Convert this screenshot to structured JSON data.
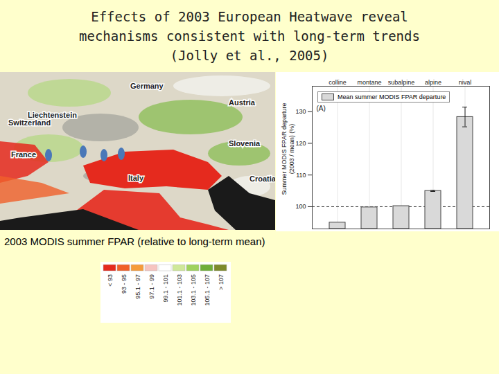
{
  "chart_data": {
    "type": "bar",
    "title": "Effects of 2003 European Heatwave reveal\nmechanisms consistent with long-term trends\n(Jolly et al., 2005)",
    "categories": [
      "colline",
      "montane",
      "subalpine",
      "alpine",
      "nival"
    ],
    "series": [
      {
        "name": "Mean summer MODIS FPAR departure",
        "color": "#d9d9d9",
        "values": [
          95,
          99.8,
          100.2,
          105,
          128.3
        ],
        "errors": [
          0,
          0,
          0,
          0.2,
          3.1
        ]
      }
    ],
    "y_label": "Summer MODIS FPAR departure\n(2003 / mean) (%)",
    "ylim": [
      93,
      138
    ],
    "yticks": [
      100,
      110,
      120,
      130
    ],
    "baseline": 100,
    "annotations": [
      "(A)"
    ],
    "legend": "upper left",
    "grid": true
  },
  "map": {
    "caption": "2003 MODIS summer FPAR  (relative to long-term mean)",
    "labels": [
      "Germany",
      "Austria",
      "Liechtenstein",
      "Switzerland",
      "Slovenia",
      "France",
      "Italy",
      "Croatia"
    ],
    "legend": {
      "labels": [
        "< 93",
        "93 - 95",
        "95.1 - 97",
        "97.1 - 99",
        "99.1 - 101",
        "101.1 - 103",
        "103.1 - 105",
        "105.1 - 107",
        "> 107"
      ],
      "colors": [
        "#e52a1e",
        "#f0602a",
        "#f59b3c",
        "#f6c4c0",
        "#ffffff",
        "#cfe89a",
        "#9fd25e",
        "#6fae3a",
        "#7d8a2c"
      ]
    }
  }
}
